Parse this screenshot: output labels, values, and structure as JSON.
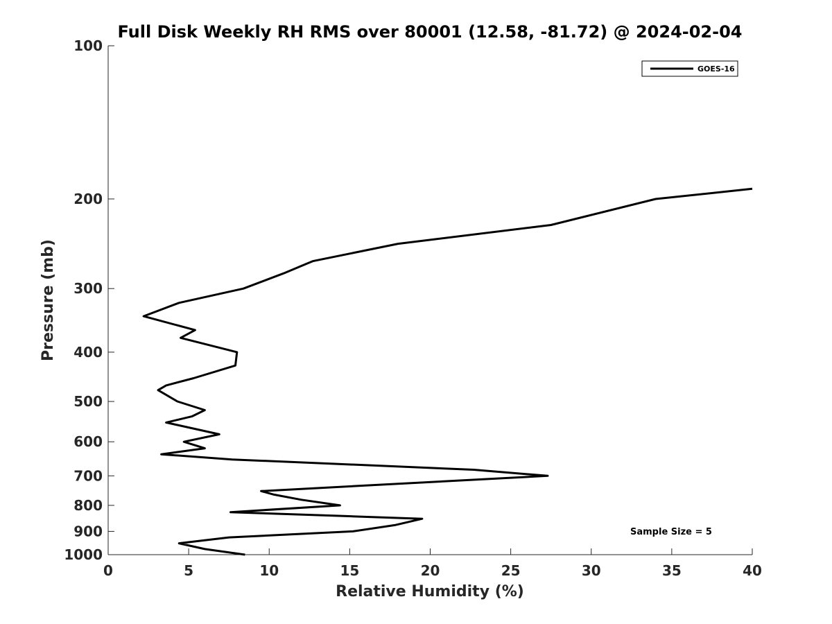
{
  "chart_data": {
    "type": "line",
    "title": "Full Disk Weekly RH RMS over 80001 (12.58, -81.72) @ 2024-02-04",
    "xlabel": "Relative Humidity (%)",
    "ylabel": "Pressure (mb)",
    "xlim": [
      0,
      40
    ],
    "ylim": [
      100,
      1000
    ],
    "y_scale": "log",
    "y_reversed": true,
    "x_ticks": [
      "0",
      "5",
      "10",
      "15",
      "20",
      "25",
      "30",
      "35",
      "40"
    ],
    "y_ticks": [
      "100",
      "200",
      "300",
      "400",
      "500",
      "600",
      "700",
      "800",
      "900",
      "1000"
    ],
    "grid": false,
    "legend_position": "top-right",
    "annotation": "Sample Size = 5",
    "series": [
      {
        "name": "GOES-16",
        "color": "#000000",
        "points": [
          {
            "x": 8.5,
            "y": 1000
          },
          {
            "x": 6.0,
            "y": 975
          },
          {
            "x": 4.4,
            "y": 950
          },
          {
            "x": 7.5,
            "y": 925
          },
          {
            "x": 15.2,
            "y": 900
          },
          {
            "x": 17.8,
            "y": 875
          },
          {
            "x": 19.5,
            "y": 850
          },
          {
            "x": 14.8,
            "y": 840
          },
          {
            "x": 7.6,
            "y": 825
          },
          {
            "x": 14.4,
            "y": 800
          },
          {
            "x": 12.0,
            "y": 780
          },
          {
            "x": 10.3,
            "y": 762
          },
          {
            "x": 9.5,
            "y": 750
          },
          {
            "x": 27.3,
            "y": 700
          },
          {
            "x": 22.7,
            "y": 681
          },
          {
            "x": 7.7,
            "y": 650
          },
          {
            "x": 3.3,
            "y": 635
          },
          {
            "x": 6.0,
            "y": 618
          },
          {
            "x": 4.7,
            "y": 600
          },
          {
            "x": 6.9,
            "y": 580
          },
          {
            "x": 3.6,
            "y": 550
          },
          {
            "x": 5.2,
            "y": 535
          },
          {
            "x": 6.0,
            "y": 520
          },
          {
            "x": 4.3,
            "y": 500
          },
          {
            "x": 3.1,
            "y": 475
          },
          {
            "x": 3.6,
            "y": 465
          },
          {
            "x": 5.3,
            "y": 450
          },
          {
            "x": 7.9,
            "y": 425
          },
          {
            "x": 8.0,
            "y": 400
          },
          {
            "x": 4.5,
            "y": 375
          },
          {
            "x": 5.4,
            "y": 362
          },
          {
            "x": 2.2,
            "y": 340
          },
          {
            "x": 4.4,
            "y": 320
          },
          {
            "x": 8.4,
            "y": 300
          },
          {
            "x": 10.9,
            "y": 280
          },
          {
            "x": 12.7,
            "y": 265
          },
          {
            "x": 18.0,
            "y": 245
          },
          {
            "x": 27.5,
            "y": 225
          },
          {
            "x": 34.0,
            "y": 200
          },
          {
            "x": 40.0,
            "y": 191
          }
        ]
      }
    ]
  }
}
